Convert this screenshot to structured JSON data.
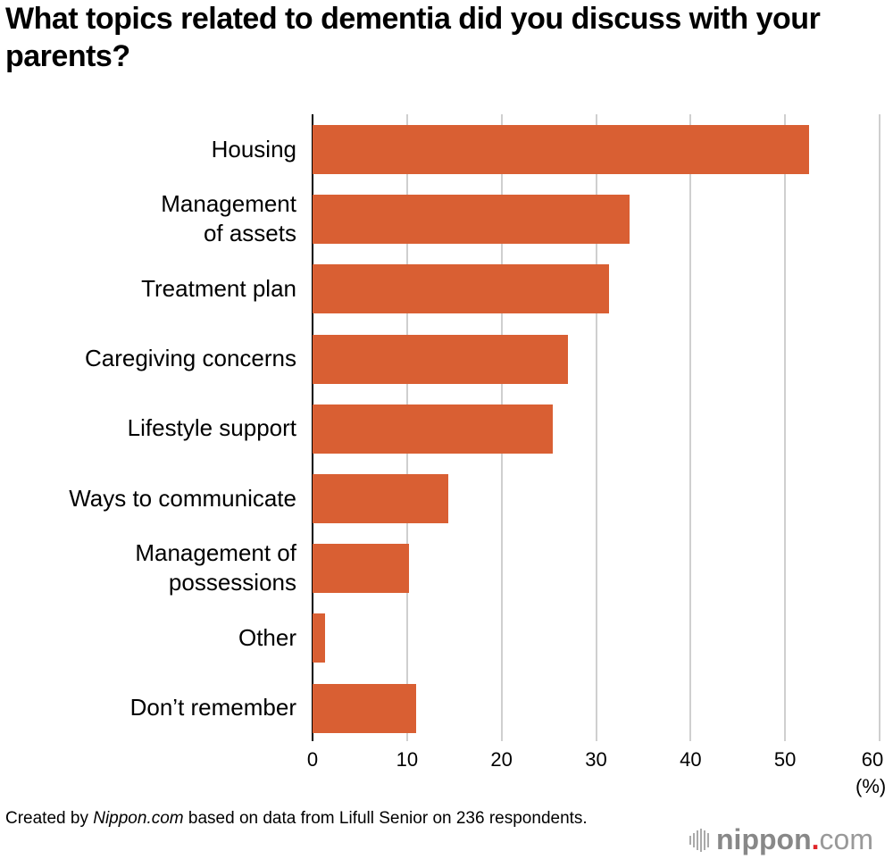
{
  "title": "What topics related to dementia did you discuss with your parents?",
  "footer": {
    "prefix": "Created by ",
    "source_italic": "Nippon.com",
    "suffix": " based on data from Lifull Senior on 236 respondents."
  },
  "logo": {
    "brand": "nippon",
    "dot": ".",
    "tld": "com"
  },
  "axis": {
    "ticks": [
      "0",
      "10",
      "20",
      "30",
      "40",
      "50",
      "60"
    ],
    "unit": "(%)"
  },
  "colors": {
    "bar": "#d95f33",
    "grid": "#cfcfcf",
    "logo_dot": "#e0262a"
  },
  "chart_data": {
    "type": "bar",
    "orientation": "horizontal",
    "title": "What topics related to dementia did you discuss with your parents?",
    "categories": [
      "Housing",
      "Management of assets",
      "Treatment plan",
      "Caregiving concerns",
      "Lifestyle support",
      "Ways to communicate",
      "Management of possessions",
      "Other",
      "Don’t remember"
    ],
    "values": [
      52.5,
      33.5,
      31.4,
      27.0,
      25.4,
      14.4,
      10.2,
      1.3,
      11.0
    ],
    "xlabel": "(%)",
    "ylabel": "",
    "xlim": [
      0,
      60
    ],
    "xticks": [
      0,
      10,
      20,
      30,
      40,
      50,
      60
    ],
    "grid": true,
    "legend": "none",
    "source": "Created by Nippon.com based on data from Lifull Senior on 236 respondents."
  },
  "labels": [
    [
      "Housing"
    ],
    [
      "Management",
      "of assets"
    ],
    [
      "Treatment plan"
    ],
    [
      "Caregiving concerns"
    ],
    [
      "Lifestyle support"
    ],
    [
      "Ways to communicate"
    ],
    [
      "Management of",
      "possessions"
    ],
    [
      "Other"
    ],
    [
      "Don’t remember"
    ]
  ]
}
